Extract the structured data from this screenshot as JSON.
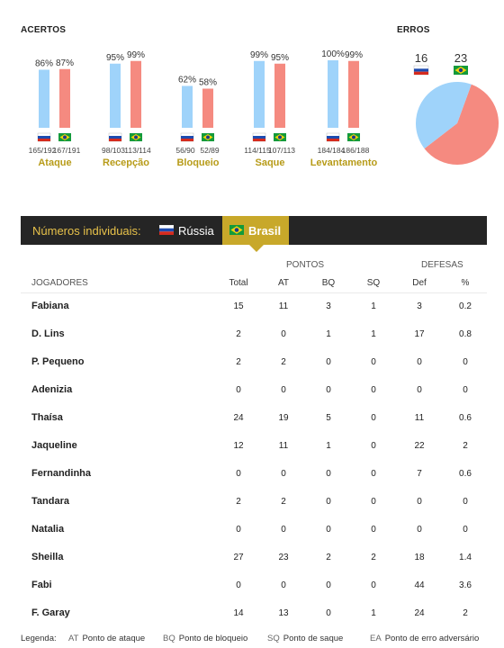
{
  "acertos_title": "ACERTOS",
  "erros_title": "ERROS",
  "chart_data": [
    {
      "type": "bar",
      "title": "ACERTOS",
      "categories": [
        "Ataque",
        "Recepção",
        "Bloqueio",
        "Saque",
        "Levantamento"
      ],
      "series": [
        {
          "name": "Rússia",
          "color": "#9fd3fa",
          "values": [
            86,
            95,
            62,
            99,
            100
          ],
          "labels": [
            "86%",
            "95%",
            "62%",
            "99%",
            "100%"
          ],
          "counts": [
            "165/192",
            "98/103",
            "56/90",
            "114/115",
            "184/184"
          ]
        },
        {
          "name": "Brasil",
          "color": "#f58a80",
          "values": [
            87,
            99,
            58,
            95,
            99
          ],
          "labels": [
            "87%",
            "99%",
            "58%",
            "95%",
            "99%"
          ],
          "counts": [
            "167/191",
            "113/114",
            "52/89",
            "107/113",
            "186/188"
          ]
        }
      ],
      "ylim": [
        0,
        100
      ]
    },
    {
      "type": "pie",
      "title": "ERROS",
      "labels": [
        "Rússia",
        "Brasil"
      ],
      "values": [
        16,
        23
      ],
      "value_labels": [
        "16",
        "23"
      ],
      "colors": [
        "#9fd3fa",
        "#f58a80"
      ]
    }
  ],
  "tabs": {
    "label": "Números individuais:",
    "russia": "Rússia",
    "brasil": "Brasil"
  },
  "table": {
    "group_pontos": "PONTOS",
    "group_defesas": "DEFESAS",
    "col_jogadores": "JOGADORES",
    "columns": [
      "Total",
      "AT",
      "BQ",
      "SQ",
      "Def",
      "%"
    ],
    "rows": [
      {
        "name": "Fabiana",
        "v": [
          "15",
          "11",
          "3",
          "1",
          "3",
          "0.2"
        ]
      },
      {
        "name": "D. Lins",
        "v": [
          "2",
          "0",
          "1",
          "1",
          "17",
          "0.8"
        ]
      },
      {
        "name": "P. Pequeno",
        "v": [
          "2",
          "2",
          "0",
          "0",
          "0",
          "0"
        ]
      },
      {
        "name": "Adenizia",
        "v": [
          "0",
          "0",
          "0",
          "0",
          "0",
          "0"
        ]
      },
      {
        "name": "Thaísa",
        "v": [
          "24",
          "19",
          "5",
          "0",
          "11",
          "0.6"
        ]
      },
      {
        "name": "Jaqueline",
        "v": [
          "12",
          "11",
          "1",
          "0",
          "22",
          "2"
        ]
      },
      {
        "name": "Fernandinha",
        "v": [
          "0",
          "0",
          "0",
          "0",
          "7",
          "0.6"
        ]
      },
      {
        "name": "Tandara",
        "v": [
          "2",
          "2",
          "0",
          "0",
          "0",
          "0"
        ]
      },
      {
        "name": "Natalia",
        "v": [
          "0",
          "0",
          "0",
          "0",
          "0",
          "0"
        ]
      },
      {
        "name": "Sheilla",
        "v": [
          "27",
          "23",
          "2",
          "2",
          "18",
          "1.4"
        ]
      },
      {
        "name": "Fabi",
        "v": [
          "0",
          "0",
          "0",
          "0",
          "44",
          "3.6"
        ]
      },
      {
        "name": "F. Garay",
        "v": [
          "14",
          "13",
          "0",
          "1",
          "24",
          "2"
        ]
      }
    ]
  },
  "legend": {
    "title": "Legenda:",
    "items": [
      {
        "abbr": "AT",
        "text": "Ponto de ataque"
      },
      {
        "abbr": "BQ",
        "text": "Ponto de bloqueio"
      },
      {
        "abbr": "SQ",
        "text": "Ponto de saque"
      },
      {
        "abbr": "EA",
        "text": "Ponto de erro adversário"
      }
    ]
  }
}
